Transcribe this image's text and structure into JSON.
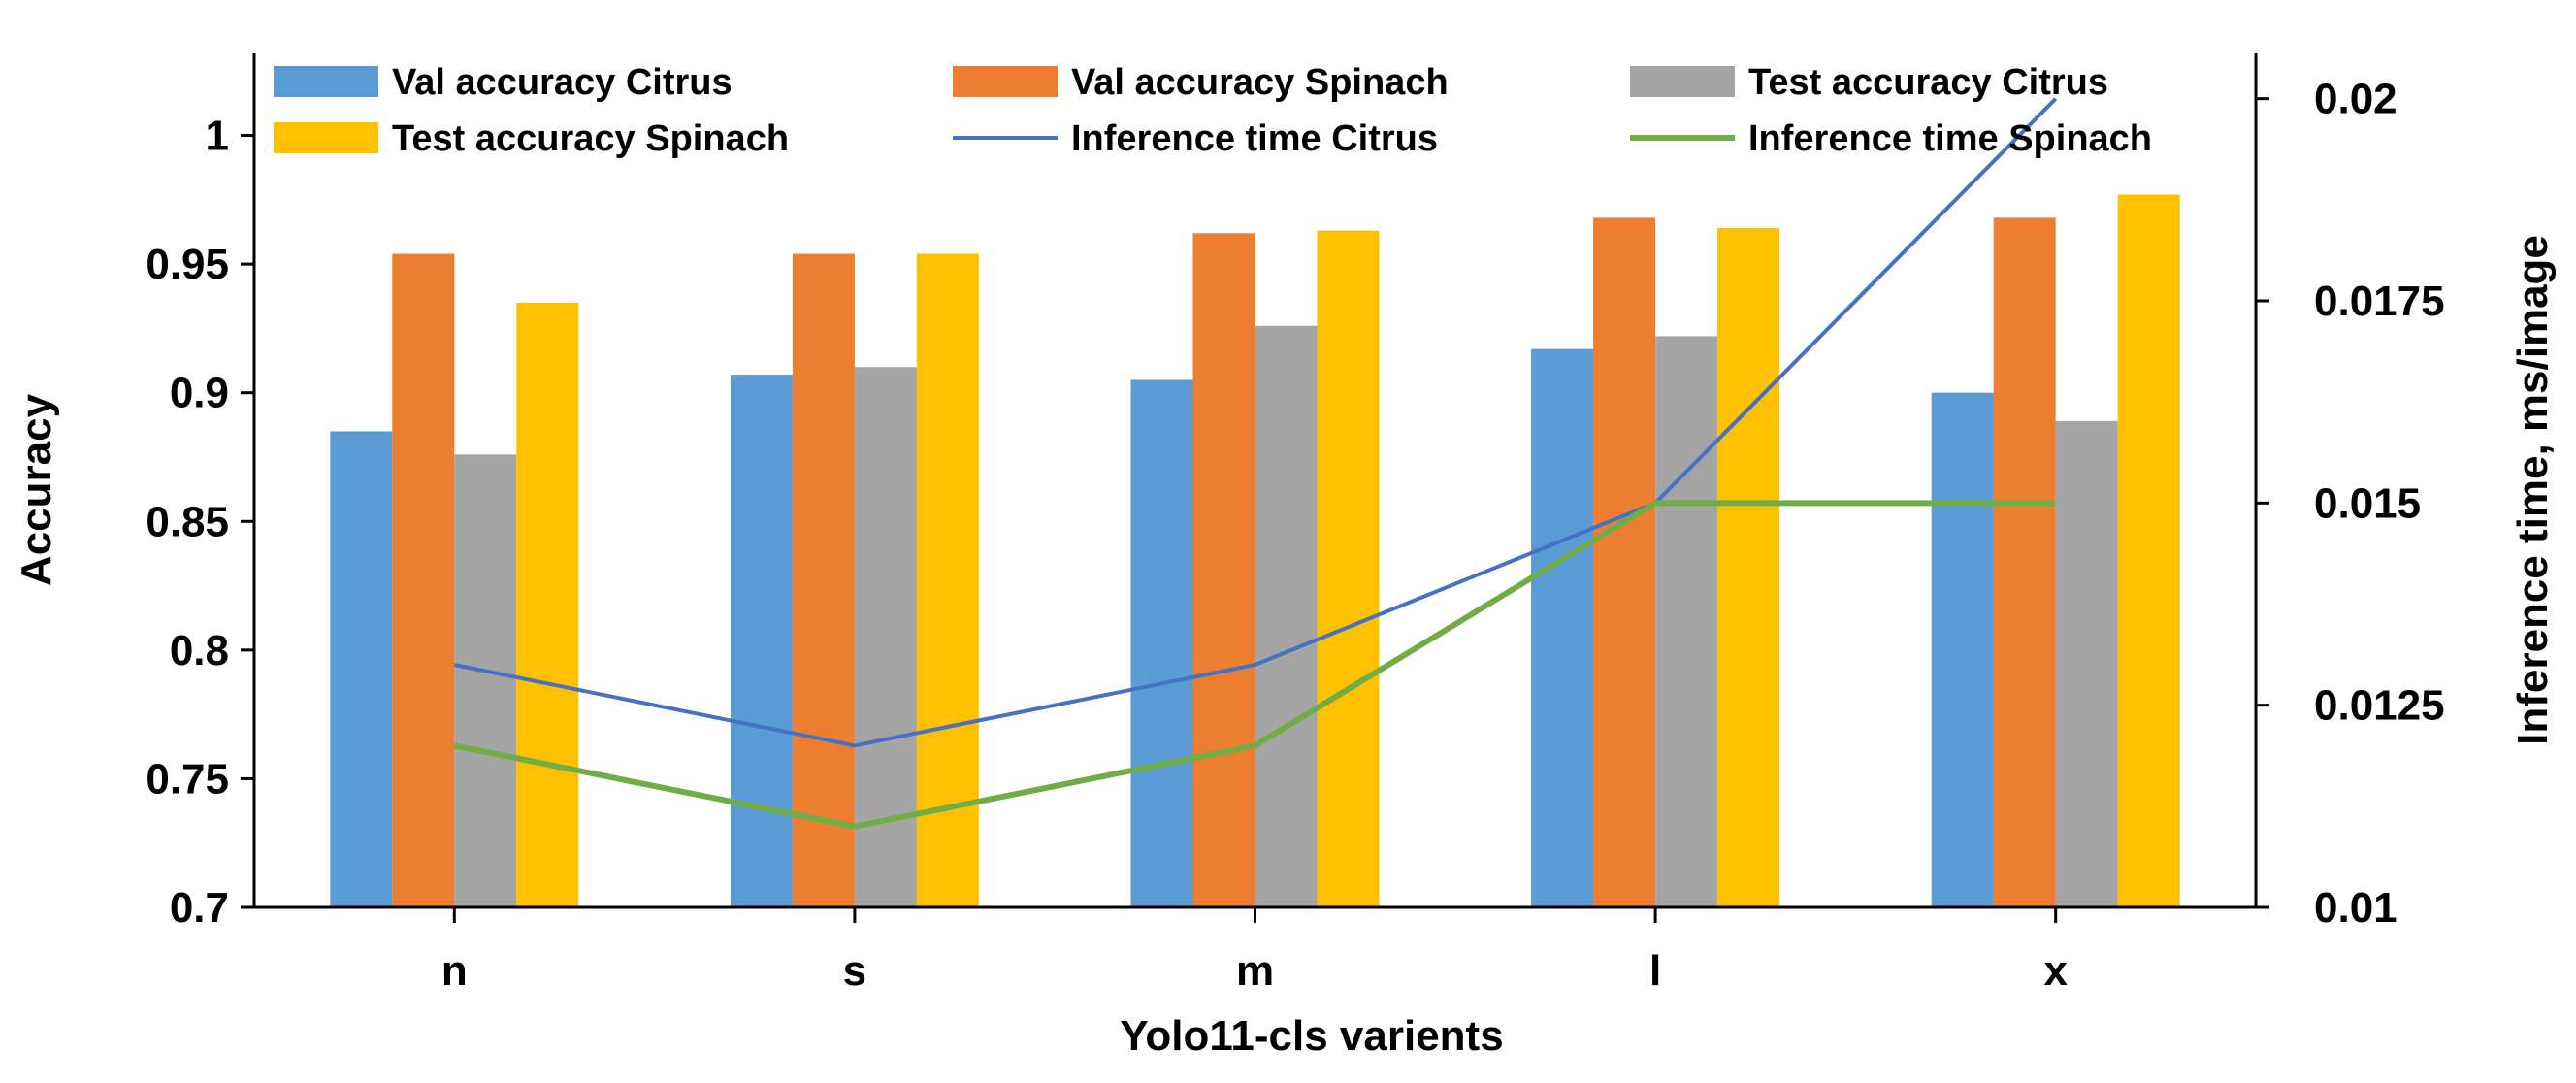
{
  "chart_data": {
    "type": "bar",
    "title": "",
    "categories": [
      "n",
      "s",
      "m",
      "l",
      "x"
    ],
    "xlabel": "Yolo11-cls varients",
    "ylabel": "Accuracy",
    "y2label": "Inference time, ms/image",
    "ylim": [
      0.7,
      1.03
    ],
    "yticks": [
      0.7,
      0.75,
      0.8,
      0.85,
      0.9,
      0.95,
      1
    ],
    "ytick_labels": [
      "0.7",
      "0.75",
      "0.8",
      "0.85",
      "0.9",
      "0.95",
      "1"
    ],
    "y2lim": [
      0.01,
      0.0205
    ],
    "y2ticks": [
      0.01,
      0.0125,
      0.015,
      0.0175,
      0.02
    ],
    "y2tick_labels": [
      "0.01",
      "0.0125",
      "0.015",
      "0.0175",
      "0.02"
    ],
    "grid": false,
    "legend_position": "top",
    "bar_series": [
      {
        "name": "Val accuracy Citrus",
        "color": "#5B9BD5",
        "values": [
          0.885,
          0.907,
          0.905,
          0.917,
          0.9
        ]
      },
      {
        "name": "Val accuracy Spinach",
        "color": "#ED7D31",
        "values": [
          0.954,
          0.954,
          0.962,
          0.968,
          0.968
        ]
      },
      {
        "name": "Test accuracy Citrus",
        "color": "#A5A5A5",
        "values": [
          0.876,
          0.91,
          0.926,
          0.922,
          0.889
        ]
      },
      {
        "name": "Test accuracy Spinach",
        "color": "#FFC000",
        "values": [
          0.935,
          0.954,
          0.963,
          0.964,
          0.977
        ]
      }
    ],
    "line_series": [
      {
        "name": "Inference time Citrus",
        "color": "#4472C4",
        "axis": "right",
        "values": [
          0.013,
          0.012,
          0.013,
          0.015,
          0.02
        ]
      },
      {
        "name": "Inference time Spinach",
        "color": "#70AD47",
        "axis": "right",
        "values": [
          0.012,
          0.011,
          0.012,
          0.015,
          0.015
        ]
      }
    ],
    "legend_order": [
      "Val accuracy Citrus",
      "Val accuracy Spinach",
      "Test accuracy Citrus",
      "Test accuracy Spinach",
      "Inference time Citrus",
      "Inference time Spinach"
    ]
  }
}
